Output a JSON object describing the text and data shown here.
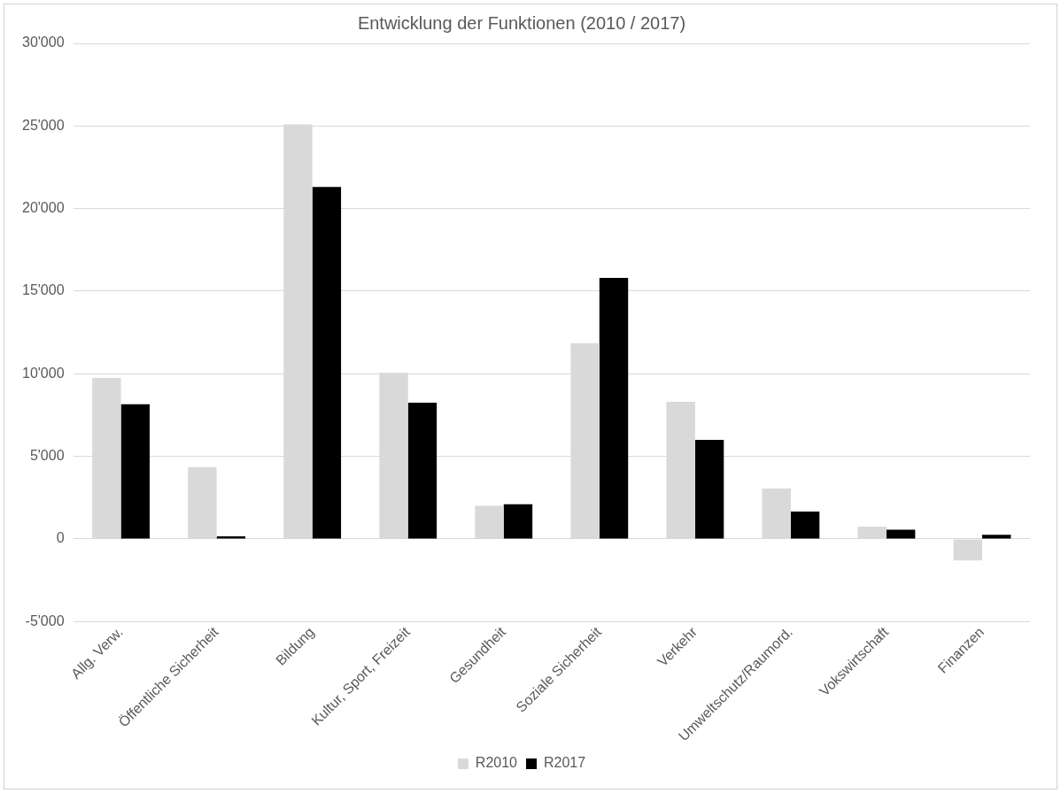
{
  "chart_data": {
    "type": "bar",
    "title": "Entwicklung der Funktionen (2010 / 2017)",
    "categories": [
      "Allg. Verw.",
      "Öffentliche Sicherheit",
      "Bildung",
      "Kultur, Sport, Freizeit",
      "Gesundheit",
      "Soziale Sicherheit",
      "Verkehr",
      "Umweltschutz/Raumord.",
      "Vokswirtschaft",
      "Finanzen"
    ],
    "series": [
      {
        "name": "R2010",
        "color": "#d9d9d9",
        "values": [
          9750,
          4350,
          25100,
          10050,
          2000,
          11850,
          8300,
          3050,
          750,
          -1300
        ]
      },
      {
        "name": "R2017",
        "color": "#000000",
        "values": [
          8150,
          150,
          21300,
          8250,
          2100,
          15800,
          6000,
          1650,
          550,
          250
        ]
      }
    ],
    "ylim": [
      -5000,
      30000
    ],
    "yticks": [
      {
        "value": -5000,
        "label": "-5'000"
      },
      {
        "value": 0,
        "label": "0"
      },
      {
        "value": 5000,
        "label": "5'000"
      },
      {
        "value": 10000,
        "label": "10'000"
      },
      {
        "value": 15000,
        "label": "15'000"
      },
      {
        "value": 20000,
        "label": "20'000"
      },
      {
        "value": 25000,
        "label": "25'000"
      },
      {
        "value": 30000,
        "label": "30'000"
      }
    ],
    "grid": "y",
    "legend": "bottom"
  }
}
